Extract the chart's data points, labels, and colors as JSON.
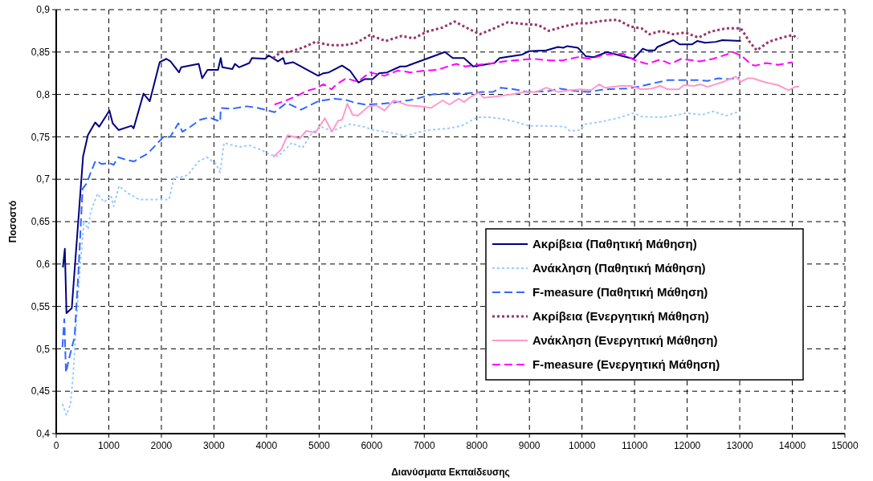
{
  "chart_data": {
    "type": "line",
    "xlabel": "Διανύσματα Εκπαίδευσης",
    "ylabel": "Ποσοστό",
    "xlim": [
      0,
      15000
    ],
    "xticks": [
      0,
      1000,
      2000,
      3000,
      4000,
      5000,
      6000,
      7000,
      8000,
      9000,
      10000,
      11000,
      12000,
      13000,
      14000,
      15000
    ],
    "ylim": [
      0.4,
      0.9
    ],
    "yticks": [
      {
        "value": 0.4,
        "label": "0,4"
      },
      {
        "value": 0.45,
        "label": "0,45"
      },
      {
        "value": 0.5,
        "label": "0,5"
      },
      {
        "value": 0.55,
        "label": "0,55"
      },
      {
        "value": 0.6,
        "label": "0,6"
      },
      {
        "value": 0.65,
        "label": "0,65"
      },
      {
        "value": 0.7,
        "label": "0,7"
      },
      {
        "value": 0.75,
        "label": "0,75"
      },
      {
        "value": 0.8,
        "label": "0,8"
      },
      {
        "value": 0.85,
        "label": "0,85"
      },
      {
        "value": 0.9,
        "label": "0,9"
      }
    ],
    "grid": true,
    "legend": "right",
    "series": [
      {
        "name": "Ακρίβεια (Παθητική Μάθηση)",
        "color": "#000080",
        "line_style": "solid",
        "x": [
          127,
          164,
          195,
          296,
          511,
          603,
          741,
          818,
          1012,
          1074,
          1186,
          1431,
          1472,
          1661,
          1779,
          1968,
          2096,
          2173,
          2336,
          2377,
          2710,
          2776,
          2878,
          3078,
          3129,
          3160,
          3349,
          3400,
          3476,
          3672,
          3723,
          3975,
          4040,
          4217,
          4318,
          4353,
          4504,
          4983,
          5084,
          5184,
          5436,
          5588,
          5749,
          5865,
          6016,
          6142,
          6293,
          6545,
          6646,
          6999,
          7392,
          7543,
          7755,
          7931,
          8334,
          8435,
          8662,
          8864,
          8990,
          9318,
          9544,
          9645,
          9721,
          9922,
          10074,
          10225,
          10477,
          10779,
          10981,
          11157,
          11233,
          11384,
          11434,
          11736,
          11863,
          12090,
          12191,
          12342,
          12544,
          12669,
          13022
        ],
        "values": [
          0.596,
          0.618,
          0.542,
          0.548,
          0.727,
          0.752,
          0.767,
          0.762,
          0.781,
          0.766,
          0.758,
          0.763,
          0.76,
          0.801,
          0.792,
          0.838,
          0.842,
          0.839,
          0.826,
          0.832,
          0.836,
          0.819,
          0.829,
          0.829,
          0.843,
          0.832,
          0.83,
          0.836,
          0.832,
          0.837,
          0.843,
          0.842,
          0.846,
          0.839,
          0.843,
          0.836,
          0.838,
          0.822,
          0.825,
          0.826,
          0.834,
          0.828,
          0.814,
          0.818,
          0.818,
          0.825,
          0.826,
          0.833,
          0.833,
          0.841,
          0.85,
          0.843,
          0.843,
          0.833,
          0.837,
          0.843,
          0.845,
          0.847,
          0.851,
          0.852,
          0.856,
          0.855,
          0.857,
          0.855,
          0.845,
          0.844,
          0.85,
          0.845,
          0.842,
          0.854,
          0.852,
          0.852,
          0.856,
          0.864,
          0.859,
          0.859,
          0.863,
          0.861,
          0.862,
          0.864,
          0.863
        ]
      },
      {
        "name": "Ανάκληση (Παθητική Μάθηση)",
        "color": "#99ccff",
        "line_style": "dotted",
        "x": [
          118,
          195,
          272,
          323,
          374,
          451,
          528,
          605,
          656,
          785,
          913,
          1041,
          1092,
          1195,
          1374,
          1580,
          1785,
          1990,
          2144,
          2246,
          2349,
          2503,
          2708,
          2862,
          3042,
          3116,
          3192,
          3470,
          3672,
          3874,
          4076,
          4227,
          4480,
          4682,
          4858,
          5035,
          5237,
          5591,
          5843,
          6045,
          6348,
          6651,
          6853,
          7106,
          7459,
          7712,
          8007,
          8259,
          8511,
          8712,
          8990,
          9267,
          9670,
          9771,
          9948,
          10074,
          10376,
          10678,
          10981,
          11132,
          11485,
          11736,
          11988,
          12291,
          12493,
          12745,
          12947
        ],
        "values": [
          0.435,
          0.422,
          0.435,
          0.47,
          0.524,
          0.594,
          0.651,
          0.641,
          0.662,
          0.683,
          0.673,
          0.681,
          0.668,
          0.692,
          0.683,
          0.676,
          0.676,
          0.676,
          0.676,
          0.703,
          0.702,
          0.705,
          0.721,
          0.726,
          0.718,
          0.708,
          0.743,
          0.738,
          0.74,
          0.735,
          0.729,
          0.727,
          0.743,
          0.737,
          0.754,
          0.762,
          0.757,
          0.765,
          0.762,
          0.758,
          0.755,
          0.751,
          0.755,
          0.758,
          0.76,
          0.763,
          0.773,
          0.773,
          0.771,
          0.768,
          0.763,
          0.763,
          0.762,
          0.757,
          0.758,
          0.765,
          0.768,
          0.772,
          0.778,
          0.774,
          0.773,
          0.775,
          0.778,
          0.776,
          0.78,
          0.775,
          0.779
        ]
      },
      {
        "name": "F-measure  (Παθητική Μάθηση)",
        "color": "#3366ff",
        "line_style": "dashed",
        "x": [
          118,
          154,
          185,
          246,
          349,
          425,
          502,
          579,
          656,
          749,
          862,
          1015,
          1092,
          1180,
          1323,
          1477,
          1734,
          2041,
          2169,
          2323,
          2400,
          2554,
          2734,
          2913,
          2990,
          3119,
          3129,
          3324,
          3632,
          3837,
          3975,
          4151,
          4378,
          4655,
          4983,
          5285,
          5487,
          5689,
          5890,
          6192,
          6495,
          6797,
          7150,
          7452,
          7755,
          8108,
          8309,
          8460,
          8712,
          8965,
          9368,
          9570,
          9872,
          10124,
          10427,
          10880,
          11132,
          11636,
          11988,
          12191,
          12392,
          12594,
          12795,
          12997
        ],
        "values": [
          0.502,
          0.535,
          0.472,
          0.489,
          0.514,
          0.594,
          0.689,
          0.695,
          0.708,
          0.722,
          0.718,
          0.719,
          0.717,
          0.726,
          0.723,
          0.721,
          0.73,
          0.75,
          0.75,
          0.766,
          0.756,
          0.762,
          0.77,
          0.773,
          0.771,
          0.768,
          0.784,
          0.783,
          0.786,
          0.784,
          0.782,
          0.779,
          0.79,
          0.782,
          0.792,
          0.795,
          0.794,
          0.79,
          0.788,
          0.789,
          0.791,
          0.794,
          0.8,
          0.801,
          0.801,
          0.803,
          0.803,
          0.808,
          0.806,
          0.803,
          0.804,
          0.807,
          0.804,
          0.803,
          0.806,
          0.807,
          0.81,
          0.817,
          0.817,
          0.817,
          0.816,
          0.819,
          0.818,
          0.82
        ]
      },
      {
        "name": "Ακρίβεια (Ενεργητική Μάθηση)",
        "color": "#993366",
        "line_style": "dotted",
        "x": [
          4126,
          4277,
          4428,
          4680,
          4932,
          5210,
          5487,
          5714,
          5966,
          6268,
          6570,
          6797,
          7049,
          7352,
          7578,
          7856,
          8057,
          8334,
          8586,
          8904,
          9166,
          9368,
          9645,
          9922,
          10124,
          10401,
          10678,
          10920,
          11132,
          11283,
          11510,
          11736,
          11963,
          12216,
          12442,
          12745,
          13022,
          13198,
          13324,
          13551,
          13803,
          14005,
          14105
        ],
        "values": [
          0.843,
          0.85,
          0.85,
          0.855,
          0.862,
          0.858,
          0.858,
          0.861,
          0.87,
          0.863,
          0.869,
          0.866,
          0.874,
          0.879,
          0.886,
          0.877,
          0.871,
          0.878,
          0.885,
          0.883,
          0.882,
          0.875,
          0.88,
          0.884,
          0.884,
          0.887,
          0.888,
          0.88,
          0.878,
          0.871,
          0.875,
          0.871,
          0.873,
          0.867,
          0.874,
          0.878,
          0.878,
          0.861,
          0.852,
          0.862,
          0.867,
          0.87,
          0.866
        ]
      },
      {
        "name": "Ανάκληση (Ενεργητική Μάθηση)",
        "color": "#ff99cc",
        "line_style": "solid",
        "x": [
          4126,
          4277,
          4403,
          4630,
          4756,
          4932,
          5109,
          5245,
          5361,
          5436,
          5537,
          5638,
          5739,
          5941,
          6092,
          6243,
          6419,
          6696,
          6949,
          7125,
          7352,
          7478,
          7654,
          7755,
          7881,
          8032,
          8133,
          8410,
          8662,
          8914,
          9141,
          9318,
          9544,
          9771,
          9973,
          10174,
          10325,
          10427,
          10729,
          10930,
          11132,
          11334,
          11485,
          11636,
          11838,
          11938,
          12140,
          12241,
          12392,
          12694,
          12921,
          13022,
          13148,
          13249,
          13501,
          13728,
          13929,
          14055,
          14130
        ],
        "values": [
          0.726,
          0.735,
          0.752,
          0.748,
          0.757,
          0.755,
          0.772,
          0.756,
          0.769,
          0.77,
          0.789,
          0.776,
          0.775,
          0.786,
          0.787,
          0.781,
          0.793,
          0.787,
          0.786,
          0.784,
          0.793,
          0.788,
          0.795,
          0.791,
          0.797,
          0.802,
          0.796,
          0.798,
          0.8,
          0.803,
          0.803,
          0.808,
          0.803,
          0.805,
          0.806,
          0.805,
          0.812,
          0.808,
          0.81,
          0.81,
          0.806,
          0.807,
          0.81,
          0.806,
          0.806,
          0.811,
          0.81,
          0.812,
          0.809,
          0.815,
          0.821,
          0.815,
          0.819,
          0.819,
          0.814,
          0.811,
          0.805,
          0.809,
          0.809
        ]
      },
      {
        "name": "F-measure (Ενεργητική Μάθηση)",
        "color": "#ff00ff",
        "line_style": "dashed",
        "x": [
          4151,
          4378,
          4605,
          4756,
          4932,
          5084,
          5235,
          5336,
          5512,
          5739,
          5966,
          6243,
          6495,
          6747,
          6999,
          7251,
          7503,
          7604,
          7780,
          8007,
          8334,
          8511,
          8864,
          9091,
          9368,
          9620,
          9922,
          10174,
          10427,
          10779,
          10981,
          11233,
          11485,
          11687,
          11888,
          12241,
          12493,
          12745,
          12871,
          13047,
          13223,
          13299,
          13501,
          13728,
          14005
        ],
        "values": [
          0.788,
          0.793,
          0.799,
          0.804,
          0.807,
          0.812,
          0.806,
          0.812,
          0.819,
          0.815,
          0.826,
          0.822,
          0.828,
          0.826,
          0.828,
          0.829,
          0.834,
          0.836,
          0.833,
          0.835,
          0.837,
          0.839,
          0.841,
          0.842,
          0.84,
          0.84,
          0.844,
          0.842,
          0.847,
          0.848,
          0.841,
          0.836,
          0.841,
          0.836,
          0.842,
          0.839,
          0.842,
          0.847,
          0.85,
          0.845,
          0.835,
          0.834,
          0.837,
          0.835,
          0.838
        ]
      }
    ]
  }
}
